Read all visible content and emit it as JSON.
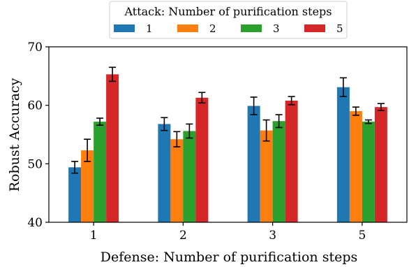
{
  "chart_data": {
    "type": "bar",
    "title": "",
    "xlabel": "Defense: Number of purification steps",
    "ylabel": "Robust Accuracy",
    "ylim": [
      40,
      70
    ],
    "yticks": [
      40,
      50,
      60,
      70
    ],
    "grid": false,
    "legend": {
      "title": "Attack: Number of purification steps",
      "placement": "top-center",
      "ncol": 4
    },
    "categories": [
      "1",
      "2",
      "3",
      "5"
    ],
    "series": [
      {
        "name": "1",
        "color": "#1f77b4",
        "values": [
          49.4,
          56.8,
          59.9,
          63.1
        ],
        "errors": [
          1.0,
          1.1,
          1.5,
          1.6
        ]
      },
      {
        "name": "2",
        "color": "#ff7f0e",
        "values": [
          52.3,
          54.2,
          55.7,
          59.0
        ],
        "errors": [
          1.9,
          1.3,
          1.8,
          0.7
        ]
      },
      {
        "name": "3",
        "color": "#2ca02c",
        "values": [
          57.2,
          55.6,
          57.3,
          57.2
        ],
        "errors": [
          0.6,
          1.2,
          1.1,
          0.3
        ]
      },
      {
        "name": "5",
        "color": "#d62728",
        "values": [
          65.3,
          61.3,
          60.8,
          59.7
        ],
        "errors": [
          1.2,
          0.9,
          0.7,
          0.6
        ]
      }
    ]
  }
}
